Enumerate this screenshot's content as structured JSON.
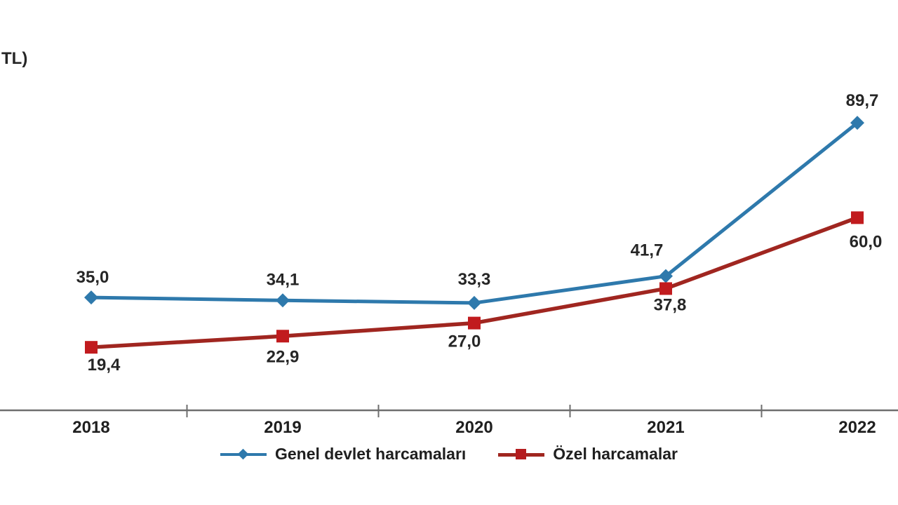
{
  "axis_note": "TL)",
  "chart_data": {
    "type": "line",
    "categories": [
      "2018",
      "2019",
      "2020",
      "2021",
      "2022"
    ],
    "series": [
      {
        "name": "Genel devlet harcamaları",
        "values": [
          35.0,
          34.1,
          33.3,
          41.7,
          89.7
        ],
        "labels": [
          "35,0",
          "34,1",
          "33,3",
          "41,7",
          "89,7"
        ],
        "color": "#2e79ac",
        "marker_color": "#2e79ac",
        "marker": "diamond"
      },
      {
        "name": "Özel harcamalar",
        "values": [
          19.4,
          22.9,
          27.0,
          37.8,
          60.0
        ],
        "labels": [
          "19,4",
          "22,9",
          "27,0",
          "37,8",
          "60,0"
        ],
        "color": "#a02620",
        "marker_color": "#c11b1e",
        "marker": "square"
      }
    ],
    "title": "",
    "xlabel": "",
    "ylabel": "TL)",
    "ylim": [
      0,
      128
    ],
    "grid": false,
    "legend_position": "bottom",
    "axis_color": "#6e6e6e",
    "label_color": "#262626"
  }
}
